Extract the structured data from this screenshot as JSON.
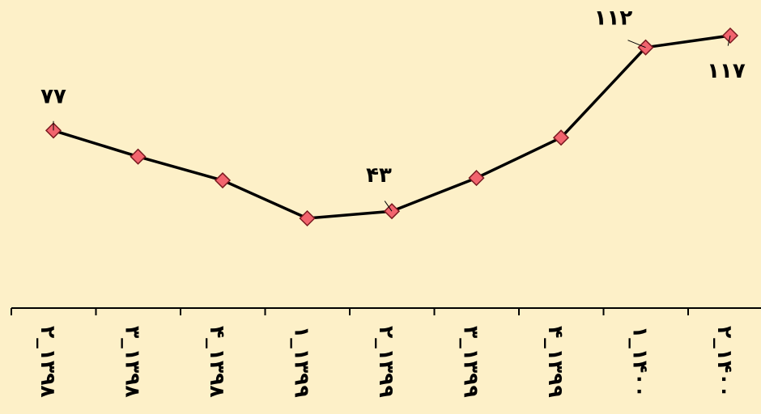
{
  "chart_data": {
    "type": "line",
    "categories": [
      "۲_۱۳۹۸",
      "۳_۱۳۹۸",
      "۴_۱۳۹۸",
      "۱_۱۳۹۹",
      "۲_۱۳۹۹",
      "۳_۱۳۹۹",
      "۴_۱۳۹۹",
      "۱_۱۴۰۰",
      "۲_۱۴۰۰"
    ],
    "values": [
      77,
      66,
      56,
      40,
      43,
      57,
      74,
      112,
      117
    ],
    "data_labels": [
      {
        "index": 0,
        "text": "۷۷"
      },
      {
        "index": 4,
        "text": "۴۳"
      },
      {
        "index": 7,
        "text": "۱۱۲"
      },
      {
        "index": 8,
        "text": "۱۱۷"
      }
    ],
    "ylim": [
      0,
      150
    ],
    "grid": false,
    "legend": "none",
    "colors": {
      "background": "#FDF0C8",
      "line": "#000000",
      "marker_fill": "#F2646E",
      "marker_stroke": "#7A1A20"
    }
  }
}
